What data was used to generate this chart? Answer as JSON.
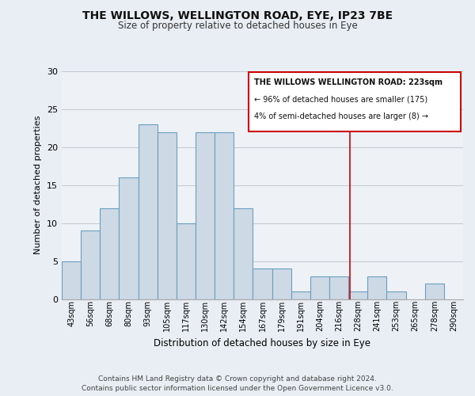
{
  "title": "THE WILLOWS, WELLINGTON ROAD, EYE, IP23 7BE",
  "subtitle": "Size of property relative to detached houses in Eye",
  "xlabel": "Distribution of detached houses by size in Eye",
  "ylabel": "Number of detached properties",
  "bar_labels": [
    "43sqm",
    "56sqm",
    "68sqm",
    "80sqm",
    "93sqm",
    "105sqm",
    "117sqm",
    "130sqm",
    "142sqm",
    "154sqm",
    "167sqm",
    "179sqm",
    "191sqm",
    "204sqm",
    "216sqm",
    "228sqm",
    "241sqm",
    "253sqm",
    "265sqm",
    "278sqm",
    "290sqm"
  ],
  "bar_values": [
    5,
    9,
    12,
    16,
    23,
    22,
    10,
    22,
    22,
    12,
    4,
    4,
    1,
    3,
    3,
    1,
    3,
    1,
    0,
    2,
    0
  ],
  "bar_color": "#cdd9e5",
  "bar_edge_color": "#6a9fc0",
  "ylim": [
    0,
    30
  ],
  "yticks": [
    0,
    5,
    10,
    15,
    20,
    25,
    30
  ],
  "reference_line_color": "#cc0000",
  "annotation_title": "THE WILLOWS WELLINGTON ROAD: 223sqm",
  "annotation_line1": "← 96% of detached houses are smaller (175)",
  "annotation_line2": "4% of semi-detached houses are larger (8) →",
  "footer1": "Contains HM Land Registry data © Crown copyright and database right 2024.",
  "footer2": "Contains public sector information licensed under the Open Government Licence v3.0.",
  "background_color": "#e8eef4",
  "plot_bg_color": "#eef2f7"
}
